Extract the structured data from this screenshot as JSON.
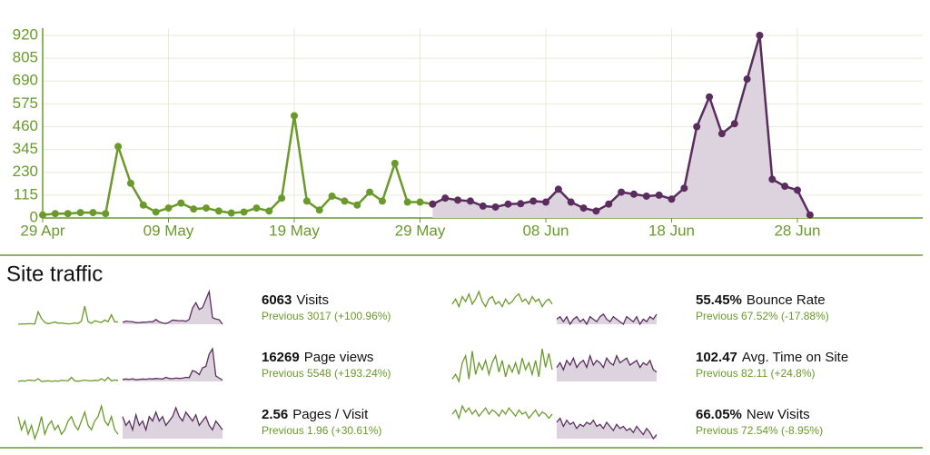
{
  "chart_data": {
    "type": "line",
    "categories": [
      "29 Apr",
      null,
      null,
      null,
      null,
      null,
      null,
      null,
      null,
      null,
      "09 May",
      null,
      null,
      null,
      null,
      null,
      null,
      null,
      null,
      null,
      "19 May",
      null,
      null,
      null,
      null,
      null,
      null,
      null,
      null,
      null,
      "29 May",
      null,
      null,
      null,
      null,
      null,
      null,
      null,
      null,
      null,
      "08 Jun",
      null,
      null,
      null,
      null,
      null,
      null,
      null,
      null,
      null,
      "18 Jun",
      null,
      null,
      null,
      null,
      null,
      null,
      null,
      null,
      null,
      "28 Jun",
      null
    ],
    "series": [
      {
        "color": "#6a9a2a",
        "values": [
          15,
          22,
          22,
          27,
          27,
          22,
          360,
          175,
          65,
          30,
          50,
          75,
          45,
          50,
          35,
          25,
          30,
          50,
          35,
          100,
          515,
          85,
          40,
          110,
          85,
          65,
          130,
          85,
          275,
          80,
          80,
          70,
          null,
          null,
          null,
          null,
          null,
          null,
          null,
          null,
          null,
          null,
          null,
          null,
          null,
          null,
          null,
          null,
          null,
          null,
          null,
          null,
          null,
          null,
          null,
          null,
          null,
          null,
          null,
          null,
          null,
          null
        ]
      },
      {
        "color": "#5a2d5e",
        "fill": "#dcd3de",
        "values": [
          null,
          null,
          null,
          null,
          null,
          null,
          null,
          null,
          null,
          null,
          null,
          null,
          null,
          null,
          null,
          null,
          null,
          null,
          null,
          null,
          null,
          null,
          null,
          null,
          null,
          null,
          null,
          null,
          null,
          null,
          null,
          70,
          100,
          90,
          85,
          60,
          55,
          70,
          72,
          85,
          80,
          145,
          80,
          50,
          35,
          70,
          130,
          120,
          110,
          115,
          95,
          150,
          460,
          610,
          425,
          475,
          700,
          920,
          195,
          160,
          140,
          15
        ]
      }
    ],
    "ylim": [
      0,
      920
    ],
    "yticks": [
      0,
      115,
      230,
      345,
      460,
      575,
      690,
      805,
      920
    ],
    "grid": true
  },
  "section_title": "Site traffic",
  "metrics": [
    {
      "value": "6063",
      "label": "Visits",
      "previous": "Previous 3017 (+100.96%)",
      "green": [
        15,
        22,
        22,
        27,
        27,
        22,
        360,
        175,
        65,
        30,
        50,
        75,
        45,
        50,
        35,
        25,
        30,
        50,
        35,
        100,
        515,
        85,
        40,
        110,
        85,
        65,
        130,
        85,
        275,
        80,
        80
      ],
      "purple": [
        70,
        100,
        90,
        85,
        60,
        55,
        70,
        72,
        85,
        80,
        145,
        80,
        50,
        35,
        70,
        130,
        120,
        110,
        115,
        95,
        150,
        460,
        610,
        425,
        475,
        700,
        920,
        195,
        160,
        140,
        15
      ]
    },
    {
      "value": "16269",
      "label": "Page views",
      "previous": "Previous 5548 (+193.24%)",
      "green": [
        40,
        45,
        42,
        50,
        48,
        45,
        60,
        40,
        42,
        45,
        40,
        44,
        42,
        48,
        46,
        45,
        70,
        44,
        42,
        45,
        50,
        46,
        44,
        48,
        46,
        60,
        45,
        70,
        45,
        50,
        48
      ],
      "purple": [
        55,
        58,
        55,
        60,
        52,
        55,
        58,
        56,
        60,
        58,
        62,
        60,
        58,
        70,
        62,
        60,
        65,
        62,
        64,
        70,
        68,
        120,
        110,
        90,
        140,
        150,
        240,
        280,
        80,
        65,
        50
      ]
    },
    {
      "value": "2.56",
      "label": "Pages / Visit",
      "previous": "Previous 1.96 (+30.61%)",
      "green": [
        60,
        45,
        55,
        40,
        50,
        35,
        45,
        60,
        40,
        50,
        55,
        45,
        50,
        40,
        45,
        55,
        60,
        50,
        45,
        55,
        65,
        50,
        45,
        55,
        60,
        72,
        55,
        50,
        60,
        45,
        40
      ],
      "purple": [
        60,
        50,
        55,
        45,
        62,
        50,
        55,
        45,
        60,
        55,
        65,
        55,
        60,
        50,
        55,
        60,
        70,
        60,
        55,
        65,
        60,
        55,
        62,
        50,
        55,
        60,
        50,
        45,
        55,
        50,
        45
      ]
    },
    {
      "value": "55.45%",
      "label": "Bounce Rate",
      "previous": "Previous 67.52% (-17.88%)",
      "green": [
        68,
        72,
        66,
        74,
        70,
        76,
        68,
        72,
        78,
        70,
        66,
        72,
        74,
        68,
        70,
        66,
        72,
        68,
        70,
        74,
        76,
        70,
        72,
        68,
        74,
        70,
        72,
        66,
        70,
        72,
        68
      ],
      "purple": [
        56,
        58,
        54,
        58,
        52,
        56,
        58,
        54,
        56,
        52,
        58,
        56,
        54,
        58,
        60,
        56,
        54,
        58,
        56,
        54,
        52,
        58,
        56,
        54,
        58,
        52,
        56,
        54,
        58,
        56,
        60
      ]
    },
    {
      "value": "102.47",
      "label": "Avg. Time on Site",
      "previous": "Previous 82.11 (+24.8%)",
      "green": [
        60,
        70,
        55,
        95,
        110,
        60,
        120,
        70,
        95,
        80,
        100,
        70,
        95,
        110,
        75,
        100,
        65,
        90,
        75,
        95,
        70,
        105,
        80,
        95,
        70,
        100,
        65,
        125,
        85,
        115,
        80
      ],
      "purple": [
        85,
        95,
        80,
        100,
        90,
        105,
        85,
        95,
        100,
        85,
        110,
        90,
        100,
        95,
        85,
        105,
        95,
        90,
        110,
        95,
        100,
        105,
        90,
        95,
        100,
        85,
        95,
        90,
        100,
        80,
        75
      ]
    },
    {
      "value": "66.05%",
      "label": "New Visits",
      "previous": "Previous 72.54% (-8.95%)",
      "green": [
        72,
        74,
        70,
        76,
        73,
        75,
        72,
        74,
        71,
        73,
        75,
        72,
        74,
        73,
        71,
        74,
        72,
        75,
        73,
        71,
        74,
        72,
        73,
        70,
        72,
        74,
        71,
        73,
        72,
        70,
        72
      ],
      "purple": [
        68,
        70,
        66,
        69,
        67,
        68,
        65,
        67,
        66,
        68,
        67,
        69,
        66,
        67,
        65,
        68,
        66,
        64,
        67,
        65,
        66,
        64,
        65,
        63,
        66,
        64,
        62,
        65,
        63,
        60,
        62
      ]
    }
  ]
}
